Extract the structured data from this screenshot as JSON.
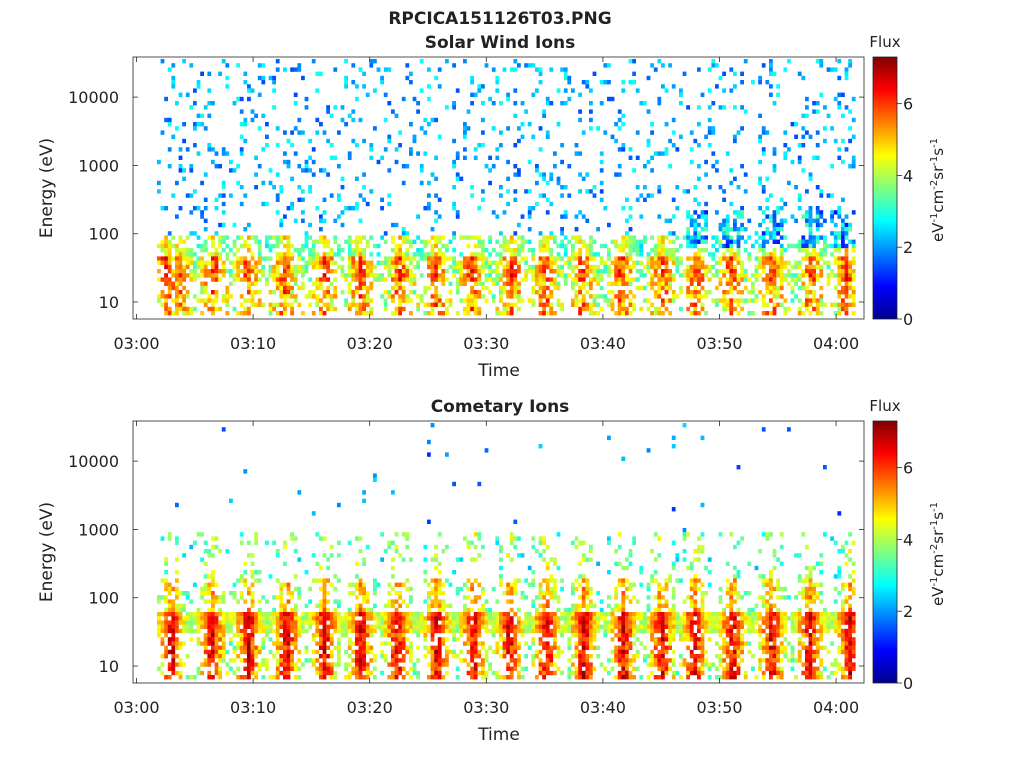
{
  "figure_title": "RPCICA151126T03.PNG",
  "chart_data": [
    {
      "type": "heatmap",
      "title": "Solar Wind Ions",
      "xlabel": "Time",
      "ylabel": "Energy (eV)",
      "x_ticks": [
        "03:00",
        "03:10",
        "03:20",
        "03:30",
        "03:40",
        "03:50",
        "04:00"
      ],
      "y_ticks": [
        "10",
        "100",
        "1000",
        "10000"
      ],
      "y_scale": "log",
      "colorbar": {
        "title": "Flux",
        "label": "eV-1cm-2sr-1s-1",
        "label_parts": [
          "eV",
          "-1",
          "cm",
          "-2",
          "sr",
          "-1",
          "s",
          "-1"
        ],
        "ticks": [
          "0",
          "2",
          "4",
          "6"
        ],
        "range": [
          0,
          7.3
        ],
        "colormap": "jet"
      }
    },
    {
      "type": "heatmap",
      "title": "Cometary Ions",
      "xlabel": "Time",
      "ylabel": "Energy (eV)",
      "x_ticks": [
        "03:00",
        "03:10",
        "03:20",
        "03:30",
        "03:40",
        "03:50",
        "04:00"
      ],
      "y_ticks": [
        "10",
        "100",
        "1000",
        "10000"
      ],
      "y_scale": "log",
      "colorbar": {
        "title": "Flux",
        "label": "eV-1cm-2sr-1s-1",
        "label_parts": [
          "eV",
          "-1",
          "cm",
          "-2",
          "sr",
          "-1",
          "s",
          "-1"
        ],
        "ticks": [
          "0",
          "2",
          "4",
          "6"
        ],
        "range": [
          0,
          7.3
        ],
        "colormap": "jet"
      }
    }
  ]
}
